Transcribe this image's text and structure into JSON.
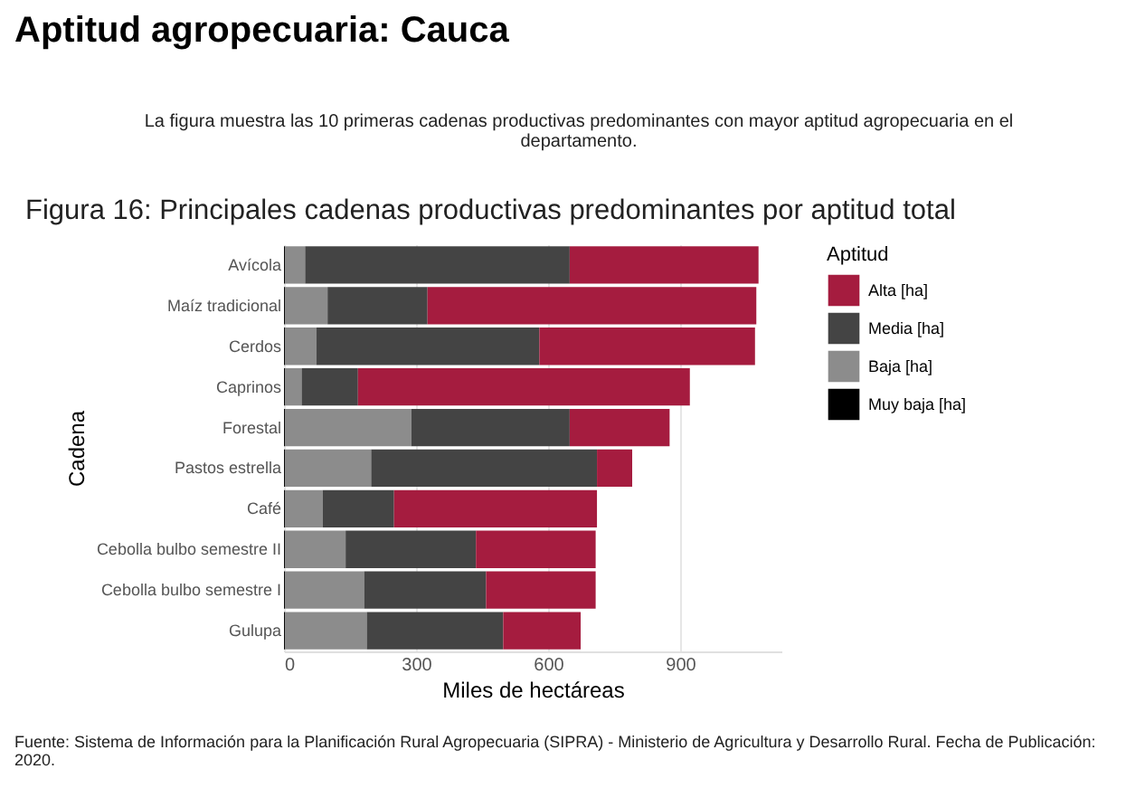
{
  "chart_data": {
    "type": "bar",
    "orientation": "horizontal",
    "stacked": true,
    "title": "Aptitud agropecuaria: Cauca",
    "subtitle": "La figura muestra las 10 primeras cadenas productivas predominantes con mayor aptitud agropecuaria en el departamento.",
    "annotations": [
      "Figura 16: Principales cadenas productivas predominantes por aptitud total",
      "Fuente: Sistema de Información para la Planificación Rural Agropecuaria (SIPRA) - Ministerio de Agricultura y Desarrollo Rural. Fecha de Publicación: 2020."
    ],
    "xlabel": "Miles de hectáreas",
    "ylabel": "Cadena",
    "legend_title": "Aptitud",
    "categories": [
      "Avícola",
      "Maíz tradicional",
      "Cerdos",
      "Caprinos",
      "Forestal",
      "Pastos estrella",
      "Café",
      "Cebolla bulbo semestre II",
      "Cebolla bulbo semestre I",
      "Gulupa"
    ],
    "series": [
      {
        "name": "Muy baja [ha]",
        "color": "#000000",
        "values": [
          2,
          2,
          2,
          2,
          2,
          2,
          2,
          2,
          2,
          2
        ]
      },
      {
        "name": "Baja [ha]",
        "color": "#8c8c8c",
        "values": [
          46,
          97,
          72,
          38,
          287,
          196,
          86,
          138,
          180,
          186
        ]
      },
      {
        "name": "Media [ha]",
        "color": "#444444",
        "values": [
          601,
          227,
          506,
          128,
          360,
          513,
          162,
          296,
          277,
          310
        ]
      },
      {
        "name": "Alta [ha]",
        "color": "#a51c3f",
        "values": [
          429,
          747,
          490,
          754,
          227,
          80,
          461,
          272,
          249,
          176
        ]
      }
    ],
    "xlim": [
      0,
      1130
    ],
    "xticks": [
      0,
      300,
      600,
      900
    ],
    "grid": "x",
    "legend": "right"
  }
}
